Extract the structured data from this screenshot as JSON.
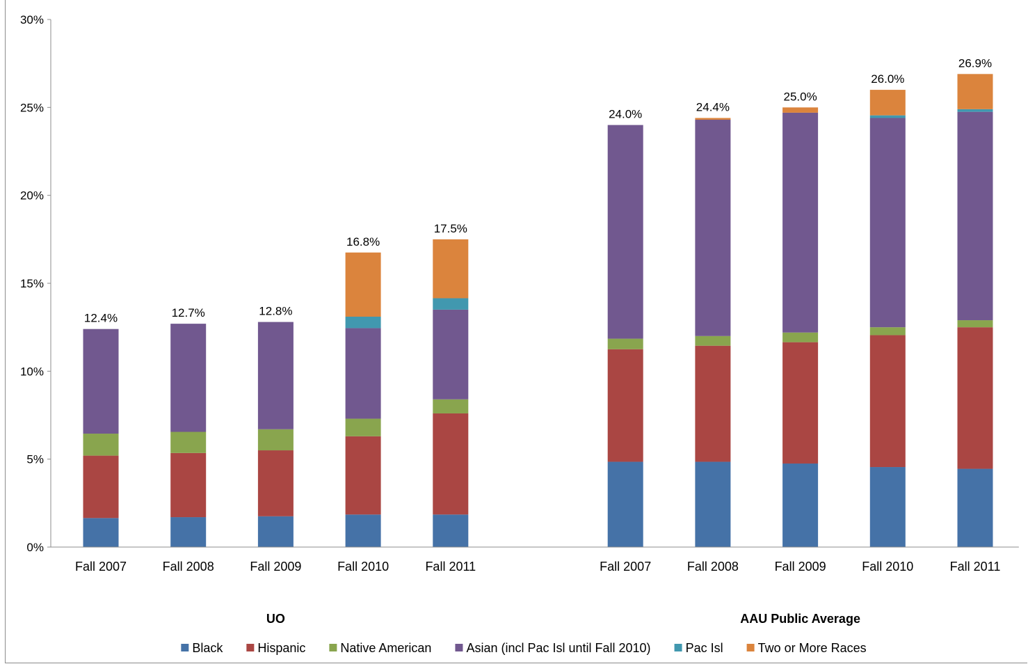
{
  "chart_data": {
    "type": "bar",
    "stacked": true,
    "y_tick_labels": [
      "0%",
      "5%",
      "10%",
      "15%",
      "20%",
      "25%",
      "30%"
    ],
    "ylim": [
      0,
      30
    ],
    "grid": false,
    "legend_position": "bottom",
    "groups": [
      {
        "label": "UO",
        "categories": [
          "Fall 2007",
          "Fall 2008",
          "Fall 2009",
          "Fall 2010",
          "Fall 2011"
        ],
        "totals": [
          "12.4%",
          "12.7%",
          "12.8%",
          "16.8%",
          "17.5%"
        ]
      },
      {
        "label": "AAU Public Average",
        "categories": [
          "Fall 2007",
          "Fall 2008",
          "Fall 2009",
          "Fall 2010",
          "Fall 2011"
        ],
        "totals": [
          "24.0%",
          "24.4%",
          "25.0%",
          "26.0%",
          "26.9%"
        ]
      }
    ],
    "series": [
      {
        "name": "Black",
        "color": "#4572A7",
        "values": [
          1.65,
          1.7,
          1.75,
          1.85,
          1.85,
          4.85,
          4.85,
          4.75,
          4.55,
          4.45
        ]
      },
      {
        "name": "Hispanic",
        "color": "#AA4643",
        "values": [
          3.55,
          3.65,
          3.75,
          4.45,
          5.75,
          6.4,
          6.6,
          6.9,
          7.5,
          8.05
        ]
      },
      {
        "name": "Native American",
        "color": "#89A54E",
        "values": [
          1.25,
          1.2,
          1.2,
          1.0,
          0.8,
          0.6,
          0.55,
          0.55,
          0.45,
          0.4
        ]
      },
      {
        "name": "Asian (incl Pac Isl until Fall 2010)",
        "color": "#71588F",
        "values": [
          5.95,
          6.15,
          6.1,
          5.15,
          5.1,
          12.15,
          12.3,
          12.5,
          11.9,
          11.85
        ]
      },
      {
        "name": "Pac Isl",
        "color": "#4198AF",
        "values": [
          0,
          0,
          0,
          0.65,
          0.65,
          0,
          0,
          0,
          0.15,
          0.15
        ]
      },
      {
        "name": "Two or More Races",
        "color": "#DB843D",
        "values": [
          0,
          0,
          0,
          3.65,
          3.35,
          0,
          0.1,
          0.3,
          1.45,
          2.0
        ]
      }
    ]
  }
}
